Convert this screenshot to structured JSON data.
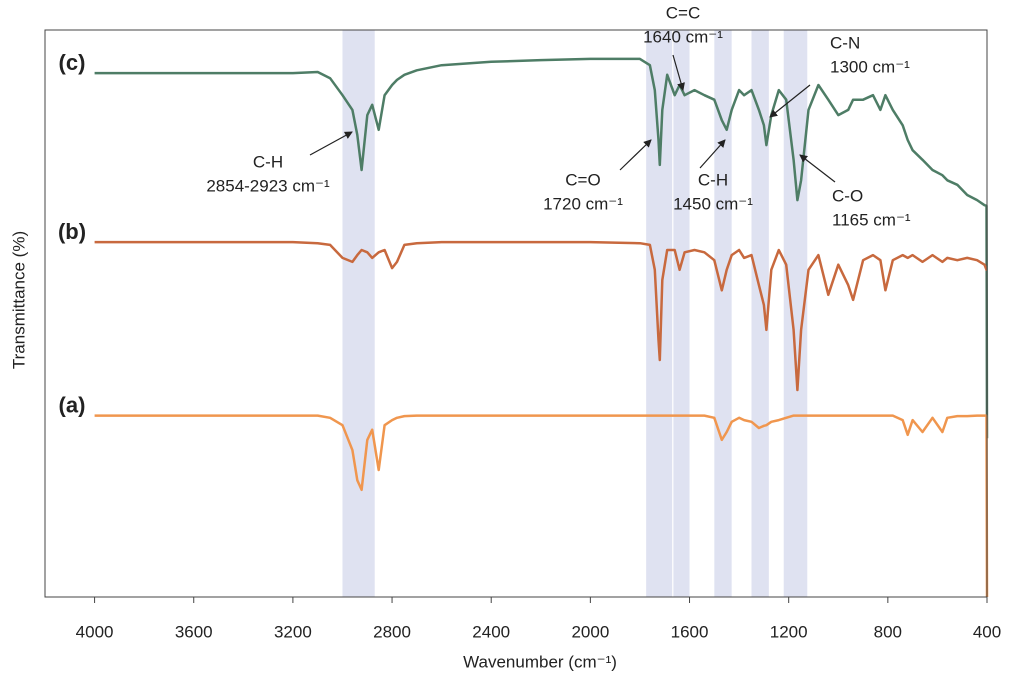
{
  "chart_data": {
    "type": "line",
    "xlabel": "Wavenumber (cm⁻¹)",
    "ylabel": "Transmittance (%)",
    "xlim": [
      4200,
      400
    ],
    "ylim": [
      0,
      100
    ],
    "xticks": [
      4000,
      3600,
      3200,
      2800,
      2400,
      2000,
      1600,
      1200,
      800,
      400
    ],
    "highlight_bands": [
      [
        3000,
        2870
      ],
      [
        1775,
        1670
      ],
      [
        1665,
        1600
      ],
      [
        1500,
        1430
      ],
      [
        1350,
        1280
      ],
      [
        1220,
        1125
      ]
    ],
    "x": [
      4000,
      3600,
      3200,
      3100,
      3050,
      3000,
      2960,
      2940,
      2923,
      2900,
      2880,
      2854,
      2830,
      2800,
      2780,
      2750,
      2700,
      2600,
      2400,
      2200,
      2000,
      1800,
      1760,
      1740,
      1725,
      1720,
      1710,
      1690,
      1660,
      1640,
      1620,
      1580,
      1540,
      1500,
      1470,
      1450,
      1430,
      1400,
      1380,
      1350,
      1320,
      1300,
      1290,
      1270,
      1240,
      1210,
      1180,
      1165,
      1150,
      1120,
      1080,
      1040,
      1000,
      960,
      940,
      900,
      860,
      830,
      810,
      780,
      740,
      720,
      700,
      660,
      620,
      580,
      560,
      520,
      480,
      440,
      410,
      402,
      400
    ],
    "series": [
      {
        "name": "(c)",
        "color": "#4e7d66",
        "values": [
          92.4,
          92.4,
          92.4,
          92.6,
          91.5,
          88.5,
          85.9,
          81.5,
          75.3,
          85.0,
          86.8,
          82.4,
          88.5,
          90.3,
          91.2,
          92.1,
          92.9,
          93.8,
          94.4,
          94.7,
          94.9,
          94.9,
          93.8,
          89.4,
          80.6,
          76.2,
          85.9,
          92.1,
          88.5,
          90.3,
          88.5,
          89.4,
          88.5,
          87.7,
          84.1,
          82.4,
          85.9,
          89.4,
          88.5,
          89.4,
          85.9,
          83.2,
          79.7,
          85.0,
          89.4,
          87.7,
          77.1,
          70.0,
          73.5,
          85.9,
          90.3,
          87.7,
          85.0,
          85.9,
          87.7,
          87.7,
          88.5,
          85.9,
          88.5,
          85.9,
          83.2,
          80.6,
          78.8,
          77.1,
          75.3,
          74.4,
          73.5,
          72.7,
          70.9,
          70.0,
          69.1,
          69.0,
          28.0
        ]
      },
      {
        "name": "(b)",
        "color": "#c8693e",
        "values": [
          62.6,
          62.6,
          62.6,
          62.4,
          62.1,
          59.8,
          59.1,
          60.3,
          61.2,
          60.8,
          59.8,
          60.8,
          61.2,
          58.0,
          59.1,
          62.1,
          62.4,
          62.6,
          62.6,
          62.6,
          62.6,
          62.4,
          62.1,
          57.7,
          45.3,
          41.8,
          55.9,
          61.2,
          61.2,
          57.7,
          60.8,
          61.2,
          60.8,
          59.4,
          54.1,
          57.7,
          60.3,
          61.2,
          59.8,
          60.3,
          55.0,
          51.5,
          47.1,
          57.7,
          61.2,
          58.6,
          47.1,
          36.5,
          47.1,
          57.7,
          60.3,
          53.3,
          58.6,
          55.0,
          52.4,
          59.4,
          60.3,
          59.4,
          54.1,
          59.4,
          60.3,
          59.8,
          60.3,
          59.1,
          60.3,
          59.1,
          59.8,
          59.4,
          59.8,
          59.4,
          58.6,
          57.7,
          57.7
        ]
      },
      {
        "name": "(a)",
        "color": "#f0964e",
        "values": [
          32.0,
          32.0,
          32.0,
          32.0,
          31.6,
          30.3,
          25.9,
          20.6,
          18.9,
          27.7,
          29.5,
          22.4,
          30.3,
          31.2,
          31.6,
          31.9,
          32.0,
          32.0,
          32.0,
          32.0,
          32.0,
          32.0,
          32.0,
          32.0,
          32.0,
          32.0,
          32.0,
          32.0,
          32.0,
          32.0,
          32.0,
          32.0,
          32.0,
          31.6,
          27.7,
          29.1,
          30.9,
          31.6,
          31.2,
          30.9,
          29.8,
          30.2,
          30.3,
          30.9,
          31.2,
          31.6,
          32.0,
          32.0,
          32.0,
          32.0,
          32.0,
          32.0,
          32.0,
          32.0,
          32.0,
          32.0,
          32.0,
          32.0,
          32.0,
          32.0,
          31.2,
          28.6,
          31.2,
          29.1,
          31.6,
          29.1,
          31.6,
          31.9,
          31.9,
          32.0,
          32.0,
          32.0,
          0
        ]
      }
    ],
    "annotations": [
      {
        "lines": [
          "C-H",
          "2854-2923 cm⁻¹"
        ]
      },
      {
        "lines": [
          "C=O",
          "1720 cm⁻¹"
        ]
      },
      {
        "lines": [
          "C=C",
          "1640 cm⁻¹"
        ]
      },
      {
        "lines": [
          "C-H",
          "1450 cm⁻¹"
        ]
      },
      {
        "lines": [
          "C-N",
          "1300 cm⁻¹"
        ]
      },
      {
        "lines": [
          "C-O",
          "1165 cm⁻¹"
        ]
      }
    ]
  }
}
